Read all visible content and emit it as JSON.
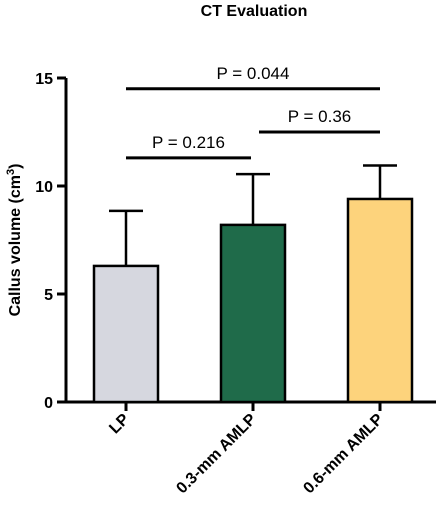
{
  "chart_data": {
    "type": "bar",
    "title": "CT  Evaluation",
    "ylabel_main": "Callus volume (cm",
    "ylabel_sup": "3",
    "ylabel_close": ")",
    "xlabel": "",
    "ylim": [
      0,
      15
    ],
    "yticks": [
      0,
      5,
      10,
      15
    ],
    "ytick_labels": [
      "0",
      "5",
      "10",
      "15"
    ],
    "grid": false,
    "categories": [
      "LP",
      "0.3-mm AMLP",
      "0.6-mm AMLP"
    ],
    "values": [
      6.3,
      8.2,
      9.4
    ],
    "error_upper": [
      8.85,
      10.55,
      10.95
    ],
    "colors": [
      "#d6d7df",
      "#1f6b4a",
      "#fdd37c"
    ],
    "comparisons": [
      {
        "from": 0,
        "to": 2,
        "label": "P = 0.044",
        "y": 14.5
      },
      {
        "from": 0,
        "to": 1,
        "label": "P = 0.216",
        "y": 11.3
      },
      {
        "from": 1,
        "to": 2,
        "label": "P = 0.36",
        "y": 12.5
      }
    ]
  }
}
